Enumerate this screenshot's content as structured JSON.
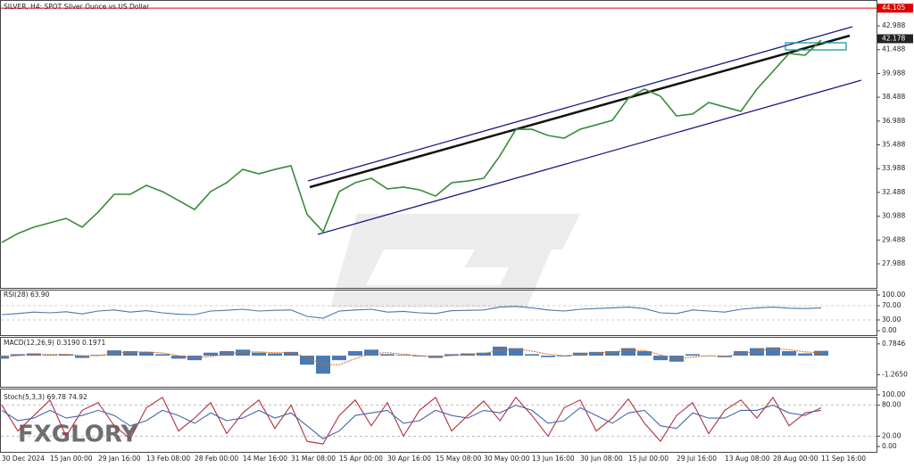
{
  "chart_data": [
    {
      "type": "line",
      "title": "SILVER, H4:  SPOT Silver Ounce vs US Dollar",
      "color": "#3a8a3a",
      "categories": [
        "30 Dec 2024",
        null,
        null,
        "15 Jan 00:00",
        null,
        null,
        "29 Jan 16:00",
        null,
        null,
        "13 Feb 08:00",
        null,
        null,
        "28 Feb 00:00",
        null,
        null,
        "14 Mar 16:00",
        null,
        null,
        "31 Mar 08:00",
        null,
        null,
        "15 Apr 00:00",
        null,
        null,
        "30 Apr 16:00",
        null,
        null,
        "15 May 08:00",
        null,
        null,
        "30 May 00:00",
        null,
        null,
        "13 Jun 16:00",
        null,
        null,
        "30 Jun 08:00",
        null,
        null,
        "15 Jul 00:00",
        null,
        null,
        "29 Jul 16:00",
        null,
        null,
        "13 Aug 08:00",
        null,
        null,
        "28 Aug 00:00",
        null,
        null,
        "11 Sep 16:00"
      ],
      "values": [
        29.33,
        29.9,
        30.3,
        30.57,
        30.85,
        30.3,
        31.25,
        32.37,
        32.37,
        32.93,
        32.54,
        31.98,
        31.41,
        32.54,
        33.1,
        33.94,
        33.66,
        33.94,
        34.17,
        31.1,
        30.01,
        32.54,
        33.1,
        33.38,
        32.71,
        32.82,
        32.65,
        32.26,
        33.1,
        33.21,
        33.38,
        34.79,
        36.47,
        36.47,
        36.08,
        35.91,
        36.47,
        36.75,
        37.03,
        38.44,
        39.0,
        38.55,
        37.31,
        37.43,
        38.16,
        37.88,
        37.6,
        39.0,
        40.12,
        41.25,
        41.14,
        42.09
      ],
      "ylim": [
        26.47,
        44.62
      ],
      "yticks": [
        42.988,
        41.488,
        39.988,
        38.488,
        36.988,
        35.488,
        33.988,
        32.488,
        30.988,
        29.488,
        27.988
      ],
      "level": 44.105,
      "level_color": "#e00000",
      "last_price": 42.178,
      "watermark": "FXGLORY"
    },
    {
      "type": "line",
      "title": "RSI(28) 63.90",
      "color": "#4a78a8",
      "values": [
        45,
        48,
        52,
        50,
        53,
        47,
        55,
        58,
        52,
        56,
        50,
        46,
        45,
        55,
        57,
        60,
        55,
        57,
        58,
        40,
        35,
        55,
        58,
        60,
        52,
        54,
        50,
        48,
        56,
        57,
        58,
        66,
        68,
        64,
        58,
        55,
        60,
        62,
        64,
        66,
        62,
        50,
        48,
        58,
        55,
        52,
        60,
        64,
        66,
        63,
        62,
        64
      ],
      "ylim": [
        0,
        100
      ],
      "yticks": [
        {
          "value": 100,
          "label": "100.00"
        },
        {
          "value": 70,
          "label": "70.00"
        },
        {
          "value": 30,
          "label": "30.00"
        },
        {
          "value": 0,
          "label": "0.00"
        }
      ]
    },
    {
      "type": "bar",
      "title": "MACD(12,26,9) 0.3190 0.1971",
      "color": "#4a7ab4",
      "signal_color": "#d2691e",
      "values": [
        -0.2,
        0.1,
        0.15,
        0.05,
        0.1,
        -0.15,
        0.05,
        0.35,
        0.3,
        0.25,
        0.1,
        -0.2,
        -0.3,
        0.2,
        0.3,
        0.4,
        0.2,
        0.15,
        0.25,
        -0.6,
        -1.2,
        -0.3,
        0.3,
        0.4,
        0.1,
        0.05,
        -0.05,
        -0.15,
        0.1,
        0.15,
        0.2,
        0.6,
        0.5,
        0.1,
        -0.1,
        -0.05,
        0.2,
        0.25,
        0.3,
        0.5,
        0.3,
        -0.3,
        -0.4,
        0.1,
        0,
        -0.1,
        0.3,
        0.5,
        0.55,
        0.3,
        0.15,
        0.32
      ],
      "signal": [
        -0.1,
        0,
        0.08,
        0.08,
        0.08,
        0,
        0,
        0.15,
        0.25,
        0.25,
        0.18,
        0,
        -0.15,
        -0.05,
        0.1,
        0.25,
        0.25,
        0.2,
        0.2,
        -0.1,
        -0.6,
        -0.6,
        -0.2,
        0.15,
        0.2,
        0.1,
        0,
        -0.08,
        0,
        0.08,
        0.15,
        0.35,
        0.45,
        0.3,
        0.1,
        0,
        0.08,
        0.18,
        0.25,
        0.35,
        0.35,
        0.05,
        -0.2,
        -0.1,
        0,
        -0.05,
        0.1,
        0.3,
        0.45,
        0.4,
        0.25,
        0.2
      ],
      "ylim": [
        -1.95,
        1.13
      ],
      "yticks": [
        0.7846,
        {
          "value": -1.265,
          "label": "-1.2650"
        }
      ]
    },
    {
      "type": "line",
      "title": "Stoch(5,3,3) 69.78 74.92",
      "series": [
        {
          "color": "#b03040",
          "values": [
            80,
            30,
            60,
            90,
            20,
            70,
            85,
            40,
            15,
            75,
            95,
            30,
            55,
            85,
            25,
            65,
            90,
            35,
            80,
            10,
            5,
            60,
            90,
            40,
            85,
            20,
            70,
            95,
            30,
            60,
            88,
            50,
            95,
            60,
            20,
            75,
            90,
            30,
            55,
            92,
            45,
            10,
            60,
            85,
            25,
            70,
            90,
            55,
            95,
            40,
            65,
            70
          ]
        },
        {
          "color": "#4466aa",
          "values": [
            70,
            50,
            55,
            70,
            55,
            60,
            70,
            60,
            40,
            50,
            70,
            60,
            45,
            65,
            50,
            55,
            70,
            55,
            65,
            40,
            15,
            30,
            60,
            65,
            70,
            45,
            50,
            70,
            60,
            55,
            70,
            65,
            80,
            70,
            45,
            50,
            75,
            60,
            45,
            65,
            70,
            40,
            35,
            65,
            55,
            55,
            70,
            70,
            80,
            65,
            60,
            75
          ]
        }
      ],
      "ylim": [
        0,
        100
      ],
      "yticks": [
        {
          "value": 100,
          "label": "100.00"
        },
        {
          "value": 80,
          "label": "80.00"
        },
        {
          "value": 20,
          "label": "20.00"
        },
        {
          "value": 0,
          "label": "0.00"
        }
      ]
    }
  ]
}
